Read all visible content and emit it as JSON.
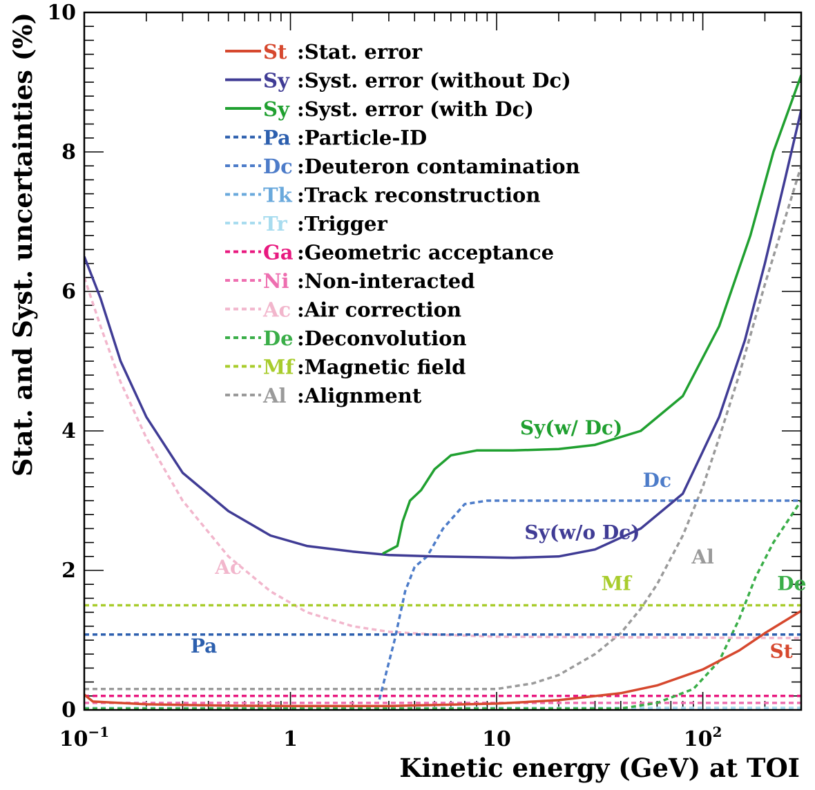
{
  "chart_data": {
    "type": "line",
    "xlabel": "Kinetic energy (GeV) at TOI",
    "ylabel": "Stat. and Syst. uncertainties (%)",
    "xscale": "log",
    "xlim": [
      0.1,
      300
    ],
    "ylim": [
      0,
      10
    ],
    "x_ticks": [
      {
        "value": 0.1,
        "base": "10",
        "exp": "−1"
      },
      {
        "value": 1,
        "base": "1",
        "exp": ""
      },
      {
        "value": 10,
        "base": "10",
        "exp": ""
      },
      {
        "value": 100,
        "base": "10",
        "exp": "2"
      }
    ],
    "y_ticks": [
      {
        "value": 0,
        "label": "0"
      },
      {
        "value": 2,
        "label": "2"
      },
      {
        "value": 4,
        "label": "4"
      },
      {
        "value": 6,
        "label": "6"
      },
      {
        "value": 8,
        "label": "8"
      },
      {
        "value": 10,
        "label": "10"
      }
    ],
    "legend_position": "top-center",
    "series": [
      {
        "id": "St",
        "abbr": "St",
        "name": ":Stat. error",
        "color": "#d6482e",
        "dash": false,
        "width": 3.5,
        "points": [
          [
            0.1,
            0.22
          ],
          [
            0.11,
            0.12
          ],
          [
            0.2,
            0.08
          ],
          [
            0.5,
            0.06
          ],
          [
            1,
            0.055
          ],
          [
            3,
            0.055
          ],
          [
            10,
            0.09
          ],
          [
            20,
            0.14
          ],
          [
            40,
            0.24
          ],
          [
            60,
            0.35
          ],
          [
            100,
            0.58
          ],
          [
            150,
            0.85
          ],
          [
            200,
            1.1
          ],
          [
            300,
            1.42
          ]
        ],
        "annotation": {
          "text": "St",
          "x": 240,
          "y": 0.75
        }
      },
      {
        "id": "Sy",
        "abbr": "Sy",
        "name": ":Syst. error (without Dc)",
        "color": "#403c95",
        "dash": false,
        "width": 3.5,
        "points": [
          [
            0.1,
            6.5
          ],
          [
            0.12,
            5.9
          ],
          [
            0.15,
            5.0
          ],
          [
            0.2,
            4.2
          ],
          [
            0.3,
            3.4
          ],
          [
            0.5,
            2.85
          ],
          [
            0.8,
            2.5
          ],
          [
            1.2,
            2.35
          ],
          [
            2,
            2.27
          ],
          [
            3,
            2.22
          ],
          [
            5,
            2.2
          ],
          [
            8,
            2.19
          ],
          [
            12,
            2.18
          ],
          [
            20,
            2.2
          ],
          [
            30,
            2.3
          ],
          [
            50,
            2.6
          ],
          [
            80,
            3.1
          ],
          [
            120,
            4.2
          ],
          [
            160,
            5.3
          ],
          [
            200,
            6.4
          ],
          [
            250,
            7.6
          ],
          [
            300,
            8.6
          ]
        ],
        "annotation": {
          "text": "Sy(w/o Dc)",
          "x": 26,
          "y": 2.45
        }
      },
      {
        "id": "SyDc",
        "abbr": "Sy",
        "name": ":Syst. error (with Dc)",
        "color": "#20a030",
        "dash": false,
        "width": 3.5,
        "points": [
          [
            2.8,
            2.24
          ],
          [
            3.3,
            2.35
          ],
          [
            3.5,
            2.7
          ],
          [
            3.8,
            3.0
          ],
          [
            4.3,
            3.15
          ],
          [
            5,
            3.45
          ],
          [
            6,
            3.65
          ],
          [
            8,
            3.72
          ],
          [
            12,
            3.72
          ],
          [
            20,
            3.74
          ],
          [
            30,
            3.8
          ],
          [
            50,
            4.0
          ],
          [
            80,
            4.5
          ],
          [
            120,
            5.5
          ],
          [
            170,
            6.8
          ],
          [
            220,
            8.0
          ],
          [
            300,
            9.1
          ]
        ],
        "annotation": {
          "text": "Sy(w/ Dc)",
          "x": 23,
          "y": 3.95
        }
      },
      {
        "id": "Pa",
        "abbr": "Pa",
        "name": ":Particle-ID",
        "color": "#2c5fae",
        "dash": true,
        "width": 3.5,
        "points": [
          [
            0.1,
            1.08
          ],
          [
            300,
            1.08
          ]
        ],
        "annotation": {
          "text": "Pa",
          "x": 0.38,
          "y": 0.82
        }
      },
      {
        "id": "Dc",
        "abbr": "Dc",
        "name": ":Deuteron contamination",
        "color": "#4d7cc9",
        "dash": true,
        "width": 3.5,
        "points": [
          [
            2.7,
            0.15
          ],
          [
            3.2,
            1.0
          ],
          [
            3.6,
            1.7
          ],
          [
            4.0,
            2.05
          ],
          [
            4.6,
            2.2
          ],
          [
            5.5,
            2.6
          ],
          [
            7,
            2.95
          ],
          [
            9,
            3.0
          ],
          [
            300,
            3.0
          ]
        ],
        "annotation": {
          "text": "Dc",
          "x": 60,
          "y": 3.2
        }
      },
      {
        "id": "Tk",
        "abbr": "Tk",
        "name": ":Track reconstruction",
        "color": "#6aa9dc",
        "dash": true,
        "width": 3.5,
        "points": [
          [
            0.1,
            0.02
          ],
          [
            300,
            0.02
          ]
        ]
      },
      {
        "id": "Tr",
        "abbr": "Tr",
        "name": ":Trigger",
        "color": "#a8dcef",
        "dash": true,
        "width": 3.5,
        "points": [
          [
            0.1,
            0.03
          ],
          [
            300,
            0.03
          ]
        ]
      },
      {
        "id": "Ga",
        "abbr": "Ga",
        "name": ":Geometric acceptance",
        "color": "#e8197f",
        "dash": true,
        "width": 3.5,
        "points": [
          [
            0.1,
            0.2
          ],
          [
            300,
            0.2
          ]
        ]
      },
      {
        "id": "Ni",
        "abbr": "Ni",
        "name": ":Non-interacted",
        "color": "#ee6fb0",
        "dash": true,
        "width": 3.5,
        "points": [
          [
            0.1,
            0.1
          ],
          [
            300,
            0.1
          ]
        ]
      },
      {
        "id": "Ac",
        "abbr": "Ac",
        "name": ":Air correction",
        "color": "#f2b6cc",
        "dash": true,
        "width": 3.5,
        "points": [
          [
            0.1,
            6.2
          ],
          [
            0.12,
            5.5
          ],
          [
            0.15,
            4.7
          ],
          [
            0.2,
            3.9
          ],
          [
            0.3,
            3.0
          ],
          [
            0.5,
            2.2
          ],
          [
            0.8,
            1.7
          ],
          [
            1.2,
            1.4
          ],
          [
            2,
            1.2
          ],
          [
            3,
            1.12
          ],
          [
            5,
            1.08
          ],
          [
            10,
            1.05
          ],
          [
            300,
            1.03
          ]
        ],
        "annotation": {
          "text": "Ac",
          "x": 0.5,
          "y": 1.95
        }
      },
      {
        "id": "De",
        "abbr": "De",
        "name": ":Deconvolution",
        "color": "#3aae48",
        "dash": true,
        "width": 3.5,
        "points": [
          [
            0.1,
            0.02
          ],
          [
            40,
            0.02
          ],
          [
            60,
            0.1
          ],
          [
            90,
            0.3
          ],
          [
            120,
            0.7
          ],
          [
            150,
            1.3
          ],
          [
            180,
            1.9
          ],
          [
            220,
            2.4
          ],
          [
            300,
            3.0
          ]
        ],
        "annotation": {
          "text": "De",
          "x": 270,
          "y": 1.72
        }
      },
      {
        "id": "Mf",
        "abbr": "Mf",
        "name": ":Magnetic field",
        "color": "#a8cc2c",
        "dash": true,
        "width": 3.5,
        "points": [
          [
            0.1,
            1.5
          ],
          [
            300,
            1.5
          ]
        ],
        "annotation": {
          "text": "Mf",
          "x": 38,
          "y": 1.72
        }
      },
      {
        "id": "Al",
        "abbr": "Al",
        "name": ":Alignment",
        "color": "#9a9a9a",
        "dash": true,
        "width": 3.5,
        "points": [
          [
            0.1,
            0.3
          ],
          [
            10,
            0.3
          ],
          [
            15,
            0.38
          ],
          [
            20,
            0.5
          ],
          [
            30,
            0.8
          ],
          [
            40,
            1.1
          ],
          [
            50,
            1.45
          ],
          [
            60,
            1.8
          ],
          [
            80,
            2.5
          ],
          [
            100,
            3.2
          ],
          [
            120,
            3.9
          ],
          [
            150,
            4.8
          ],
          [
            200,
            6.1
          ],
          [
            300,
            7.8
          ]
        ],
        "annotation": {
          "text": "Al",
          "x": 100,
          "y": 2.1
        }
      }
    ]
  }
}
